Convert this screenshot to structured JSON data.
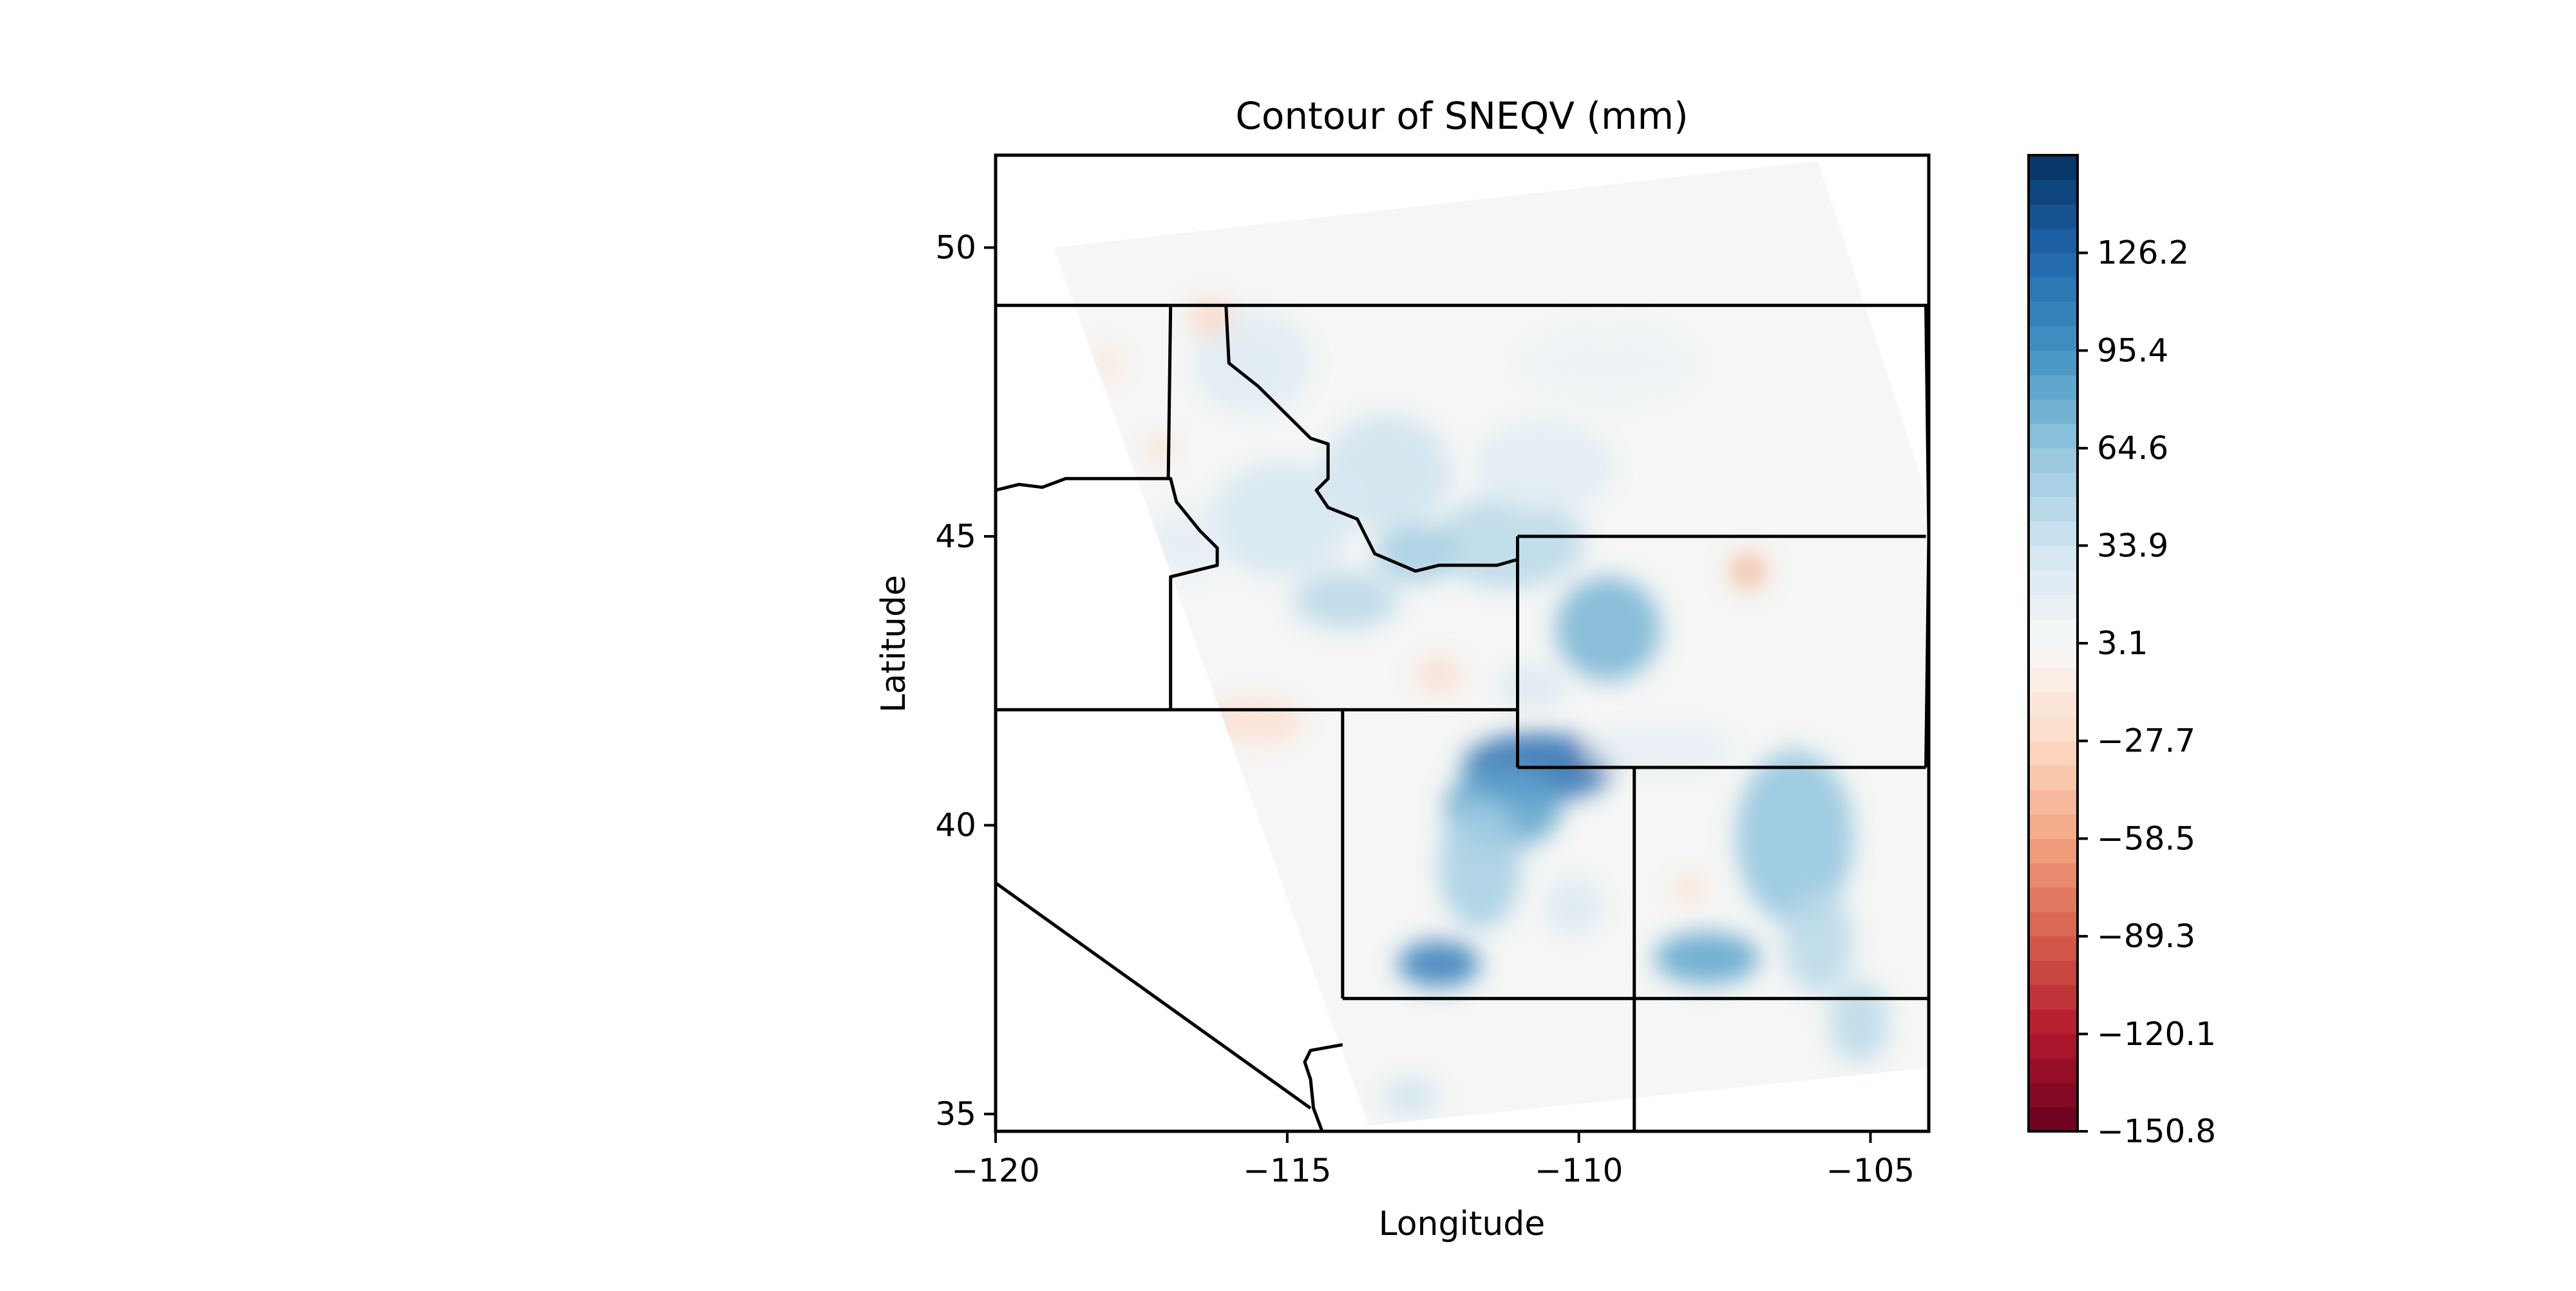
{
  "chart_data": {
    "type": "heatmap",
    "title": "Contour of SNEQV (mm)",
    "xlabel": "Longitude",
    "ylabel": "Latitude",
    "xlim": [
      -120,
      -104
    ],
    "ylim": [
      34.7,
      51.6
    ],
    "x_ticks": [
      -120,
      -115,
      -110,
      -105
    ],
    "y_ticks": [
      35,
      40,
      45,
      50
    ],
    "x_tick_labels": [
      "−120",
      "−115",
      "−110",
      "−105"
    ],
    "y_tick_labels": [
      "35",
      "40",
      "45",
      "50"
    ],
    "colorbar": {
      "colormap": "RdBu",
      "min": -150.8,
      "max": 157.0,
      "ticks": [
        126.2,
        95.4,
        64.6,
        33.9,
        3.1,
        -27.7,
        -58.5,
        -89.3,
        -120.1,
        -150.8
      ],
      "tick_labels": [
        "126.2",
        "95.4",
        "64.6",
        "33.9",
        "3.1",
        "−27.7",
        "−58.5",
        "−89.3",
        "−120.1",
        "−150.8"
      ]
    },
    "domain_corners": [
      [
        -119.0,
        50.0
      ],
      [
        -105.9,
        51.5
      ],
      [
        -104.0,
        45.6
      ],
      [
        -104.0,
        35.8
      ],
      [
        -113.6,
        34.8
      ]
    ],
    "background_value": 0,
    "features": [
      {
        "lon": -110.7,
        "lat": 41.0,
        "rx": 1.3,
        "ry": 0.6,
        "value": 120
      },
      {
        "lon": -112.4,
        "lat": 37.6,
        "rx": 0.7,
        "ry": 0.4,
        "value": 110
      },
      {
        "lon": -107.8,
        "lat": 37.7,
        "rx": 0.9,
        "ry": 0.45,
        "value": 85
      },
      {
        "lon": -109.5,
        "lat": 43.4,
        "rx": 0.9,
        "ry": 0.9,
        "value": 75
      },
      {
        "lon": -111.3,
        "lat": 40.3,
        "rx": 1.0,
        "ry": 0.7,
        "value": 85
      },
      {
        "lon": -111.7,
        "lat": 39.3,
        "rx": 0.7,
        "ry": 1.1,
        "value": 55
      },
      {
        "lon": -106.3,
        "lat": 39.8,
        "rx": 1.0,
        "ry": 1.5,
        "value": 65
      },
      {
        "lon": -105.9,
        "lat": 38.0,
        "rx": 0.6,
        "ry": 0.9,
        "value": 45
      },
      {
        "lon": -105.2,
        "lat": 36.6,
        "rx": 0.5,
        "ry": 0.7,
        "value": 45
      },
      {
        "lon": -113.3,
        "lat": 46.1,
        "rx": 1.1,
        "ry": 1.0,
        "value": 35
      },
      {
        "lon": -115.1,
        "lat": 45.3,
        "rx": 1.2,
        "ry": 1.0,
        "value": 30
      },
      {
        "lon": -114.0,
        "lat": 43.9,
        "rx": 0.9,
        "ry": 0.5,
        "value": 45
      },
      {
        "lon": -111.2,
        "lat": 44.9,
        "rx": 1.3,
        "ry": 0.8,
        "value": 45
      },
      {
        "lon": -112.8,
        "lat": 44.7,
        "rx": 0.7,
        "ry": 0.5,
        "value": 55
      },
      {
        "lon": -115.6,
        "lat": 48.0,
        "rx": 1.0,
        "ry": 0.9,
        "value": 22
      },
      {
        "lon": -110.6,
        "lat": 46.2,
        "rx": 1.2,
        "ry": 0.8,
        "value": 20
      },
      {
        "lon": -108.6,
        "lat": 41.3,
        "rx": 1.3,
        "ry": 0.4,
        "value": 18
      },
      {
        "lon": -110.8,
        "lat": 42.4,
        "rx": 0.6,
        "ry": 0.4,
        "value": 25
      },
      {
        "lon": -110.1,
        "lat": 38.6,
        "rx": 0.5,
        "ry": 0.5,
        "value": 25
      },
      {
        "lon": -112.9,
        "lat": 35.3,
        "rx": 0.5,
        "ry": 0.3,
        "value": 35
      },
      {
        "lon": -109.5,
        "lat": 48.0,
        "rx": 1.5,
        "ry": 0.7,
        "value": 12
      },
      {
        "lon": -116.7,
        "lat": 44.9,
        "rx": 0.7,
        "ry": 0.6,
        "value": 18
      },
      {
        "lon": -107.1,
        "lat": 44.4,
        "rx": 0.3,
        "ry": 0.3,
        "value": -50
      },
      {
        "lon": -116.3,
        "lat": 48.8,
        "rx": 0.4,
        "ry": 0.3,
        "value": -30
      },
      {
        "lon": -112.4,
        "lat": 42.6,
        "rx": 0.4,
        "ry": 0.3,
        "value": -25
      },
      {
        "lon": -115.6,
        "lat": 41.8,
        "rx": 0.9,
        "ry": 0.4,
        "value": -20
      },
      {
        "lon": -108.1,
        "lat": 38.9,
        "rx": 0.3,
        "ry": 0.2,
        "value": -25
      },
      {
        "lon": -117.2,
        "lat": 46.5,
        "rx": 0.2,
        "ry": 0.2,
        "value": -30
      },
      {
        "lon": -118.1,
        "lat": 48.0,
        "rx": 0.3,
        "ry": 0.3,
        "value": -15
      },
      {
        "lon": -116.5,
        "lat": 40.6,
        "rx": 0.4,
        "ry": 0.4,
        "value": -15
      }
    ],
    "boundaries": [
      {
        "name": "us-canada",
        "points": [
          [
            -120,
            49.0
          ],
          [
            -104,
            49.0
          ]
        ]
      },
      {
        "name": "or-id",
        "points": [
          [
            -120,
            45.8
          ],
          [
            -119.6,
            45.9
          ],
          [
            -119.2,
            45.85
          ],
          [
            -118.8,
            46.0
          ],
          [
            -117.0,
            46.0
          ],
          [
            -116.9,
            45.6
          ],
          [
            -116.5,
            45.1
          ],
          [
            -116.2,
            44.8
          ],
          [
            -116.2,
            44.5
          ],
          [
            -117.0,
            44.3
          ],
          [
            -117.0,
            42.0
          ]
        ]
      },
      {
        "name": "wa-id",
        "points": [
          [
            -117.0,
            49.0
          ],
          [
            -117.04,
            46.0
          ]
        ]
      },
      {
        "name": "id-mt",
        "points": [
          [
            -116.05,
            49.0
          ],
          [
            -116.0,
            48.0
          ],
          [
            -115.5,
            47.6
          ],
          [
            -114.6,
            46.7
          ],
          [
            -114.3,
            46.6
          ],
          [
            -114.3,
            46.0
          ],
          [
            -114.5,
            45.8
          ],
          [
            -114.3,
            45.5
          ],
          [
            -113.8,
            45.3
          ],
          [
            -113.5,
            44.7
          ],
          [
            -112.8,
            44.4
          ],
          [
            -112.4,
            44.5
          ],
          [
            -111.4,
            44.5
          ],
          [
            -111.05,
            44.6
          ]
        ]
      },
      {
        "name": "mt-wy-north",
        "points": [
          [
            -111.05,
            45.0
          ],
          [
            -104.05,
            45.0
          ]
        ]
      },
      {
        "name": "wy-west",
        "points": [
          [
            -111.05,
            45.0
          ],
          [
            -111.05,
            41.0
          ]
        ]
      },
      {
        "name": "wy-south",
        "points": [
          [
            -111.05,
            41.0
          ],
          [
            -104.05,
            41.0
          ]
        ]
      },
      {
        "name": "wy-east",
        "points": [
          [
            -104.05,
            49.0
          ],
          [
            -104.0,
            45.0
          ],
          [
            -104.05,
            41.0
          ]
        ]
      },
      {
        "name": "id-ut-north",
        "points": [
          [
            -120,
            42.0
          ],
          [
            -111.05,
            42.0
          ]
        ]
      },
      {
        "name": "nv-ut",
        "points": [
          [
            -114.05,
            42.0
          ],
          [
            -114.05,
            37.0
          ]
        ]
      },
      {
        "name": "ut-co",
        "points": [
          [
            -109.05,
            41.0
          ],
          [
            -109.05,
            31.0
          ]
        ]
      },
      {
        "name": "four-corners",
        "points": [
          [
            -114.05,
            37.0
          ],
          [
            -104,
            37.0
          ]
        ]
      },
      {
        "name": "ca-nv-diag",
        "points": [
          [
            -120,
            39.0
          ],
          [
            -114.6,
            35.1
          ]
        ]
      },
      {
        "name": "colorado-river",
        "points": [
          [
            -114.05,
            36.2
          ],
          [
            -114.6,
            36.1
          ],
          [
            -114.7,
            35.9
          ],
          [
            -114.6,
            35.6
          ],
          [
            -114.55,
            35.1
          ],
          [
            -114.4,
            34.7
          ]
        ]
      }
    ]
  }
}
